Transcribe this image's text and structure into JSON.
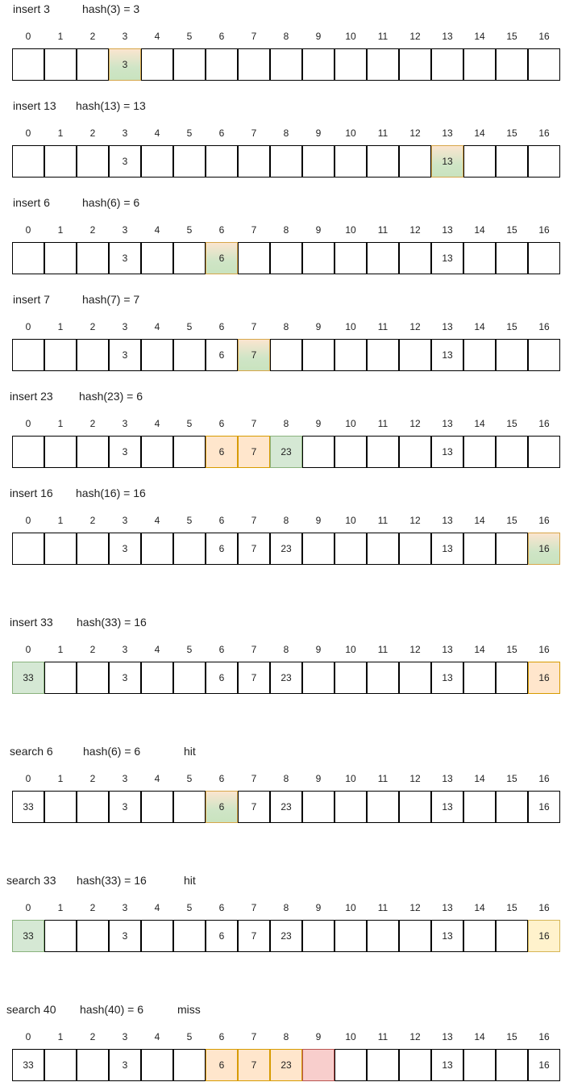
{
  "indices": [
    "0",
    "1",
    "2",
    "3",
    "4",
    "5",
    "6",
    "7",
    "8",
    "9",
    "10",
    "11",
    "12",
    "13",
    "14",
    "15",
    "16"
  ],
  "colors": {
    "highlight_green": "#d5e8d4",
    "probed_orange": "#ffe6cc",
    "hit_yellow": "#fff2cc",
    "miss_red": "#f8cecc"
  },
  "steps": [
    {
      "op": "insert 3",
      "hash": "hash(3) = 3",
      "result": "",
      "cells": [
        "",
        "",
        "",
        "3",
        "",
        "",
        "",
        "",
        "",
        "",
        "",
        "",
        "",
        "",
        "",
        "",
        ""
      ],
      "states": [
        "",
        "",
        "",
        "green",
        "",
        "",
        "",
        "",
        "",
        "",
        "",
        "",
        "",
        "",
        "",
        "",
        ""
      ]
    },
    {
      "op": "insert 13",
      "hash": "hash(13) = 13",
      "result": "",
      "cells": [
        "",
        "",
        "",
        "3",
        "",
        "",
        "",
        "",
        "",
        "",
        "",
        "",
        "",
        "13",
        "",
        "",
        ""
      ],
      "states": [
        "",
        "",
        "",
        "",
        "",
        "",
        "",
        "",
        "",
        "",
        "",
        "",
        "",
        "green",
        "",
        "",
        ""
      ]
    },
    {
      "op": "insert 6",
      "hash": "hash(6) = 6",
      "result": "",
      "cells": [
        "",
        "",
        "",
        "3",
        "",
        "",
        "6",
        "",
        "",
        "",
        "",
        "",
        "",
        "13",
        "",
        "",
        ""
      ],
      "states": [
        "",
        "",
        "",
        "",
        "",
        "",
        "green",
        "",
        "",
        "",
        "",
        "",
        "",
        "",
        "",
        "",
        ""
      ]
    },
    {
      "op": "insert 7",
      "hash": "hash(7) = 7",
      "result": "",
      "cells": [
        "",
        "",
        "",
        "3",
        "",
        "",
        "6",
        "7",
        "",
        "",
        "",
        "",
        "",
        "13",
        "",
        "",
        ""
      ],
      "states": [
        "",
        "",
        "",
        "",
        "",
        "",
        "",
        "green",
        "",
        "",
        "",
        "",
        "",
        "",
        "",
        "",
        ""
      ]
    },
    {
      "op": "insert 23",
      "hash": "hash(23) = 6",
      "result": "",
      "cells": [
        "",
        "",
        "",
        "3",
        "",
        "",
        "6",
        "7",
        "23",
        "",
        "",
        "",
        "",
        "13",
        "",
        "",
        ""
      ],
      "states": [
        "",
        "",
        "",
        "",
        "",
        "",
        "orange",
        "orange",
        "greenflat",
        "",
        "",
        "",
        "",
        "",
        "",
        "",
        ""
      ]
    },
    {
      "op": "insert 16",
      "hash": "hash(16) = 16",
      "result": "",
      "cells": [
        "",
        "",
        "",
        "3",
        "",
        "",
        "6",
        "7",
        "23",
        "",
        "",
        "",
        "",
        "13",
        "",
        "",
        "16"
      ],
      "states": [
        "",
        "",
        "",
        "",
        "",
        "",
        "",
        "",
        "",
        "",
        "",
        "",
        "",
        "",
        "",
        "",
        "green"
      ]
    },
    {
      "op": "insert 33",
      "hash": "hash(33) = 16",
      "result": "",
      "cells": [
        "33",
        "",
        "",
        "3",
        "",
        "",
        "6",
        "7",
        "23",
        "",
        "",
        "",
        "",
        "13",
        "",
        "",
        "16"
      ],
      "states": [
        "greenflat",
        "",
        "",
        "",
        "",
        "",
        "",
        "",
        "",
        "",
        "",
        "",
        "",
        "",
        "",
        "",
        "orange"
      ]
    },
    {
      "op": "search 6",
      "hash": "hash(6) = 6",
      "result": "hit",
      "cells": [
        "33",
        "",
        "",
        "3",
        "",
        "",
        "6",
        "7",
        "23",
        "",
        "",
        "",
        "",
        "13",
        "",
        "",
        "16"
      ],
      "states": [
        "",
        "",
        "",
        "",
        "",
        "",
        "green",
        "",
        "",
        "",
        "",
        "",
        "",
        "",
        "",
        "",
        ""
      ]
    },
    {
      "op": "search 33",
      "hash": "hash(33) = 16",
      "result": "hit",
      "cells": [
        "33",
        "",
        "",
        "3",
        "",
        "",
        "6",
        "7",
        "23",
        "",
        "",
        "",
        "",
        "13",
        "",
        "",
        "16"
      ],
      "states": [
        "greenflat",
        "",
        "",
        "",
        "",
        "",
        "",
        "",
        "",
        "",
        "",
        "",
        "",
        "",
        "",
        "",
        "yellow"
      ]
    },
    {
      "op": "search 40",
      "hash": "hash(40) = 6",
      "result": "miss",
      "cells": [
        "33",
        "",
        "",
        "3",
        "",
        "",
        "6",
        "7",
        "23",
        "",
        "",
        "",
        "",
        "13",
        "",
        "",
        "16"
      ],
      "states": [
        "",
        "",
        "",
        "",
        "",
        "",
        "orange",
        "orange",
        "orange",
        "red",
        "",
        "",
        "",
        "",
        "",
        "",
        ""
      ]
    }
  ]
}
